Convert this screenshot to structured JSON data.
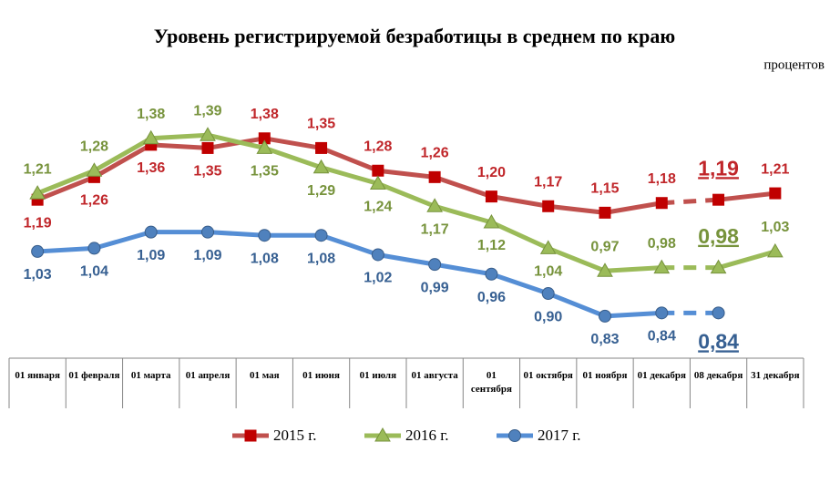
{
  "chart_data": {
    "type": "line",
    "title": "Уровень регистрируемой безработицы в среднем по краю",
    "unit_label": "процентов",
    "categories": [
      "01 января",
      "01 февраля",
      "01 марта",
      "01 апреля",
      "01 мая",
      "01 июня",
      "01 июля",
      "01 августа",
      "01 сентября",
      "01 октября",
      "01 ноября",
      "01 декабря",
      "08 декабря",
      "31 декабря"
    ],
    "ylim": [
      0.7,
      1.65
    ],
    "legend": "bottom",
    "series": [
      {
        "name": "2015 г.",
        "color": "#c0504d",
        "marker_color": "#c00000",
        "label_color": "#c0262a",
        "marker": "square",
        "values": [
          1.19,
          1.26,
          1.36,
          1.35,
          1.38,
          1.35,
          1.28,
          1.26,
          1.2,
          1.17,
          1.15,
          1.18,
          1.19,
          1.21
        ],
        "value_labels": [
          "1,19",
          "1,26",
          "1,36",
          "1,35",
          "1,38",
          "1,35",
          "1,28",
          "1,26",
          "1,20",
          "1,17",
          "1,15",
          "1,18",
          "1,19",
          "1,21"
        ]
      },
      {
        "name": "2016 г.",
        "color": "#9bbb59",
        "marker_color": "#9bbb59",
        "label_color": "#77933c",
        "marker": "triangle",
        "values": [
          1.21,
          1.28,
          1.38,
          1.39,
          1.35,
          1.29,
          1.24,
          1.17,
          1.12,
          1.04,
          0.97,
          0.98,
          0.98,
          1.03
        ],
        "value_labels": [
          "1,21",
          "1,28",
          "1,38",
          "1,39",
          "1,35",
          "1,29",
          "1,24",
          "1,17",
          "1,12",
          "1,04",
          "0,97",
          "0,98",
          "0,98",
          "1,03"
        ]
      },
      {
        "name": "2017 г.",
        "color": "#558ed5",
        "marker_color": "#4f81bd",
        "label_color": "#376092",
        "marker": "circle",
        "values": [
          1.03,
          1.04,
          1.09,
          1.09,
          1.08,
          1.08,
          1.02,
          0.99,
          0.96,
          0.9,
          0.83,
          0.84,
          0.84,
          null
        ],
        "value_labels": [
          "1,03",
          "1,04",
          "1,09",
          "1,09",
          "1,08",
          "1,08",
          "1,02",
          "0,99",
          "0,96",
          "0,90",
          "0,83",
          "0,84",
          "0,84",
          null
        ]
      }
    ]
  }
}
